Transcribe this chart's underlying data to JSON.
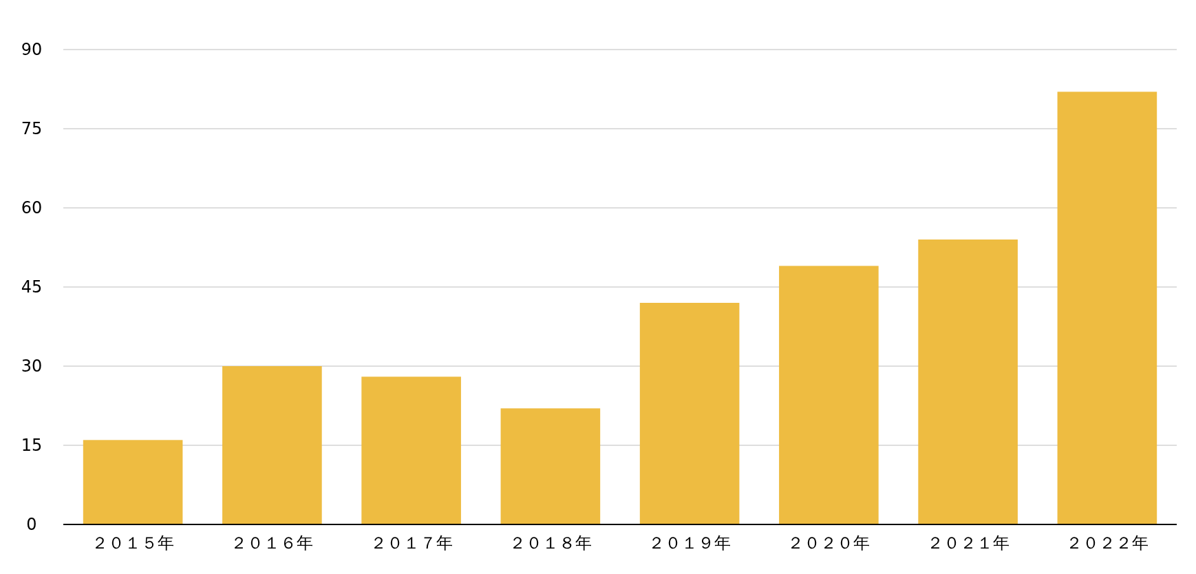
{
  "chart_data": {
    "type": "bar",
    "categories": [
      "２０１５年",
      "２０１６年",
      "２０１７年",
      "２０１８年",
      "２０１９年",
      "２０２０年",
      "２０２１年",
      "２０２２年"
    ],
    "values": [
      16,
      30,
      28,
      22,
      42,
      49,
      54,
      82
    ],
    "color": "#eebc41",
    "ylim": [
      0,
      90
    ],
    "yticks": [
      0,
      15,
      30,
      45,
      60,
      75,
      90
    ],
    "grid": "y"
  }
}
